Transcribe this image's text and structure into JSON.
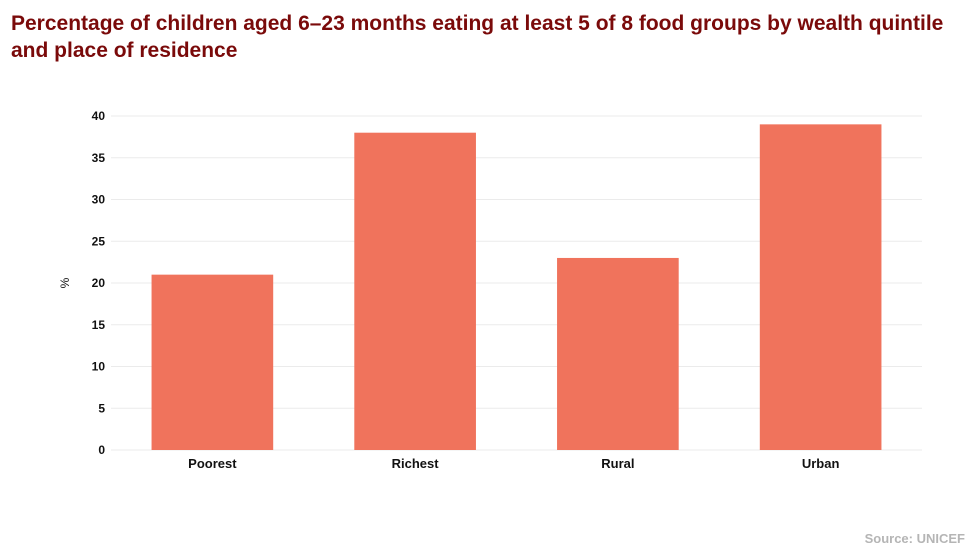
{
  "chart_data": {
    "type": "bar",
    "title": "Percentage of children aged 6–23 months eating at least 5 of 8 food groups by wealth quintile and place of residence",
    "categories": [
      "Poorest",
      "Richest",
      "Rural",
      "Urban"
    ],
    "values": [
      21,
      38,
      23,
      39
    ],
    "xlabel": "",
    "ylabel": "%",
    "ylim": [
      0,
      40
    ],
    "yticks": [
      "0",
      "5",
      "10",
      "15",
      "20",
      "25",
      "30",
      "35",
      "40"
    ],
    "grid": true,
    "legend": "none",
    "bar_color": "#f0735c",
    "source": "Source: UNICEF"
  },
  "colors": {
    "title": "#7a0a0a",
    "bar": "#f0735c",
    "gridline": "#ebebeb",
    "source": "#b5b5b5"
  }
}
